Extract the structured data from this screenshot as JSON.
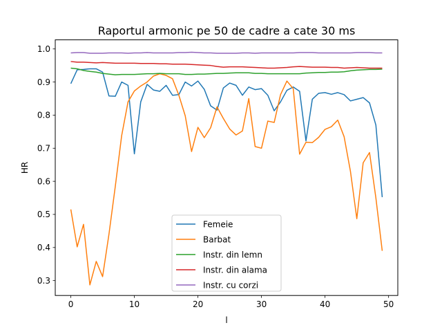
{
  "chart_data": {
    "type": "line",
    "title": "Raportul armonic pe 50 de cadre a cate 30 ms",
    "xlabel": "l",
    "ylabel": "HR",
    "xlim": [
      -2.45,
      51.45
    ],
    "ylim": [
      0.255,
      1.0275
    ],
    "xticks": [
      0,
      10,
      20,
      30,
      40,
      50
    ],
    "yticks": [
      0.3,
      0.4,
      0.5,
      0.6,
      0.7,
      0.8,
      0.9,
      1.0
    ],
    "ytick_labels": [
      "0.3",
      "0.4",
      "0.5",
      "0.6",
      "0.7",
      "0.8",
      "0.9",
      "1.0"
    ],
    "grid": false,
    "legend_position": "lower center",
    "x": [
      0,
      1,
      2,
      3,
      4,
      5,
      6,
      7,
      8,
      9,
      10,
      11,
      12,
      13,
      14,
      15,
      16,
      17,
      18,
      19,
      20,
      21,
      22,
      23,
      24,
      25,
      26,
      27,
      28,
      29,
      30,
      31,
      32,
      33,
      34,
      35,
      36,
      37,
      38,
      39,
      40,
      41,
      42,
      43,
      44,
      45,
      46,
      47,
      48,
      49
    ],
    "series": [
      {
        "name": "Femeie",
        "color": "#1f77b4",
        "values": [
          0.895,
          0.937,
          0.938,
          0.94,
          0.94,
          0.93,
          0.858,
          0.857,
          0.9,
          0.89,
          0.683,
          0.84,
          0.893,
          0.876,
          0.872,
          0.89,
          0.86,
          0.862,
          0.9,
          0.888,
          0.903,
          0.878,
          0.828,
          0.815,
          0.882,
          0.897,
          0.89,
          0.86,
          0.885,
          0.877,
          0.88,
          0.86,
          0.813,
          0.84,
          0.875,
          0.885,
          0.872,
          0.722,
          0.848,
          0.866,
          0.868,
          0.863,
          0.868,
          0.862,
          0.843,
          0.848,
          0.853,
          0.837,
          0.77,
          0.552
        ]
      },
      {
        "name": "Barbat",
        "color": "#ff7f0e",
        "values": [
          0.515,
          0.402,
          0.47,
          0.287,
          0.358,
          0.312,
          0.44,
          0.585,
          0.738,
          0.84,
          0.873,
          0.888,
          0.9,
          0.918,
          0.925,
          0.92,
          0.91,
          0.86,
          0.798,
          0.69,
          0.763,
          0.732,
          0.762,
          0.825,
          0.79,
          0.758,
          0.74,
          0.752,
          0.85,
          0.705,
          0.7,
          0.782,
          0.778,
          0.862,
          0.903,
          0.88,
          0.682,
          0.718,
          0.717,
          0.733,
          0.757,
          0.765,
          0.785,
          0.735,
          0.63,
          0.487,
          0.656,
          0.687,
          0.55,
          0.39
        ]
      },
      {
        "name": "Instr. din lemn",
        "color": "#2ca02c",
        "values": [
          0.942,
          0.94,
          0.935,
          0.932,
          0.93,
          0.926,
          0.924,
          0.922,
          0.923,
          0.923,
          0.923,
          0.924,
          0.925,
          0.925,
          0.926,
          0.925,
          0.925,
          0.925,
          0.923,
          0.923,
          0.924,
          0.924,
          0.925,
          0.926,
          0.926,
          0.927,
          0.928,
          0.928,
          0.928,
          0.926,
          0.926,
          0.925,
          0.925,
          0.925,
          0.925,
          0.925,
          0.925,
          0.927,
          0.928,
          0.929,
          0.929,
          0.93,
          0.93,
          0.931,
          0.934,
          0.936,
          0.937,
          0.938,
          0.938,
          0.939
        ]
      },
      {
        "name": "Instr. din alama",
        "color": "#d62728",
        "values": [
          0.962,
          0.96,
          0.96,
          0.959,
          0.958,
          0.959,
          0.958,
          0.957,
          0.957,
          0.957,
          0.957,
          0.956,
          0.956,
          0.956,
          0.955,
          0.955,
          0.954,
          0.954,
          0.954,
          0.953,
          0.952,
          0.951,
          0.95,
          0.947,
          0.945,
          0.946,
          0.946,
          0.946,
          0.945,
          0.944,
          0.943,
          0.942,
          0.942,
          0.943,
          0.944,
          0.946,
          0.947,
          0.946,
          0.945,
          0.945,
          0.945,
          0.944,
          0.944,
          0.942,
          0.943,
          0.944,
          0.943,
          0.942,
          0.942,
          0.942
        ]
      },
      {
        "name": "Instr. cu corzi",
        "color": "#9467bd",
        "values": [
          0.988,
          0.989,
          0.989,
          0.987,
          0.987,
          0.987,
          0.988,
          0.988,
          0.988,
          0.987,
          0.988,
          0.988,
          0.989,
          0.988,
          0.988,
          0.988,
          0.988,
          0.989,
          0.989,
          0.99,
          0.989,
          0.988,
          0.988,
          0.987,
          0.987,
          0.987,
          0.987,
          0.988,
          0.988,
          0.987,
          0.988,
          0.988,
          0.988,
          0.988,
          0.988,
          0.988,
          0.989,
          0.989,
          0.989,
          0.988,
          0.988,
          0.988,
          0.988,
          0.988,
          0.988,
          0.989,
          0.989,
          0.989,
          0.988,
          0.988
        ]
      }
    ]
  }
}
